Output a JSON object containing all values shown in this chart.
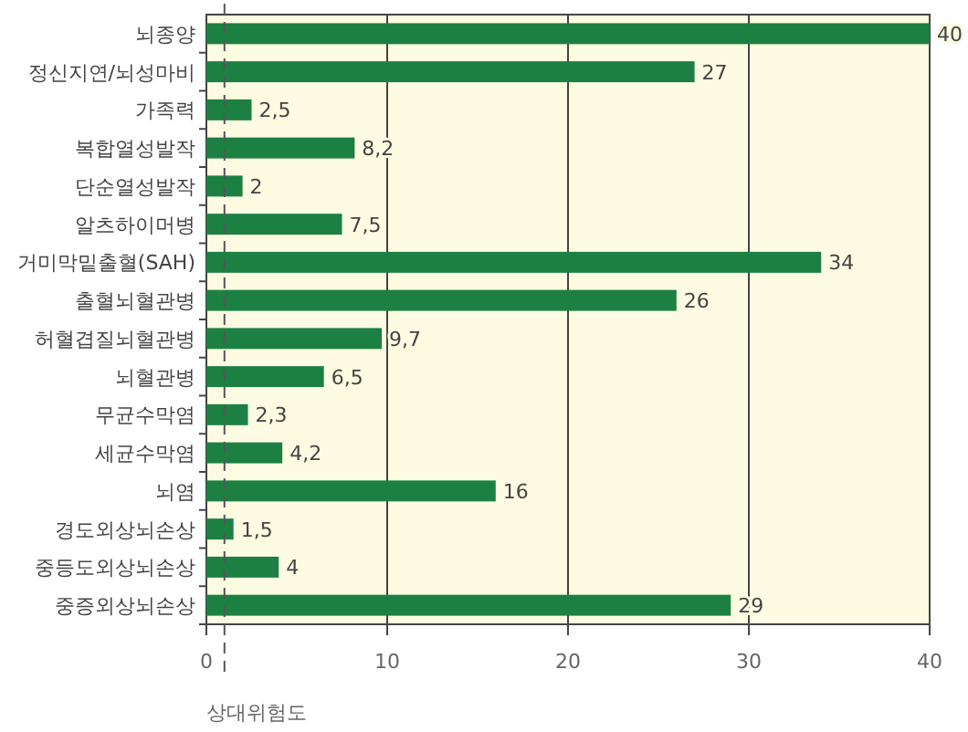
{
  "chart_data": {
    "type": "bar",
    "orientation": "horizontal",
    "xlabel": "상대위험도",
    "categories": [
      "뇌종양",
      "정신지연/뇌성마비",
      "가족력",
      "복합열성발작",
      "단순열성발작",
      "알츠하이머병",
      "거미막밑출혈(SAH)",
      "출혈뇌혈관병",
      "허혈겹질뇌혈관병",
      "뇌혈관병",
      "무균수막염",
      "세균수막염",
      "뇌염",
      "경도외상뇌손상",
      "중등도외상뇌손상",
      "중증외상뇌손상"
    ],
    "values": [
      40,
      27,
      2.5,
      8.2,
      2,
      7.5,
      34,
      26,
      9.7,
      6.5,
      2.3,
      4.2,
      16,
      1.5,
      4,
      29
    ],
    "value_labels": [
      "40",
      "27",
      "2,5",
      "8,2",
      "2",
      "7,5",
      "34",
      "26",
      "9,7",
      "6,5",
      "2,3",
      "4,2",
      "16",
      "1,5",
      "4",
      "29"
    ],
    "color": "#1d8043",
    "xlim": [
      0,
      40
    ],
    "xticks": [
      0,
      10,
      20,
      30,
      40
    ],
    "grid": "x",
    "ref_lines": [
      {
        "axis": "x",
        "value": 1,
        "color": "#555555",
        "line_style": "dashed"
      }
    ]
  }
}
